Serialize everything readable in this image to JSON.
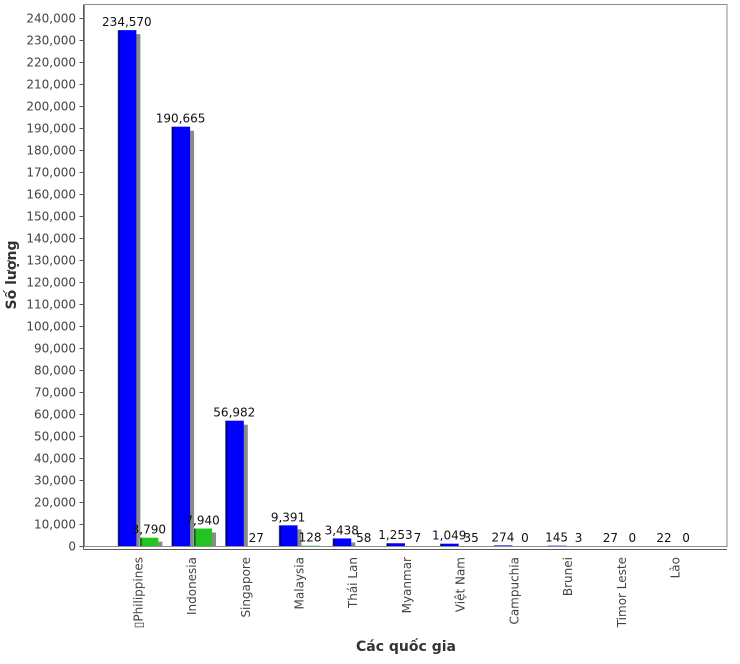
{
  "chart_data": {
    "type": "bar",
    "xlabel": "Các quốc gia",
    "ylabel": "Số lượng",
    "categories": [
      "▯Philippines",
      "Indonesia",
      "Singapore",
      "Malaysia",
      "Thái Lan",
      "Myanmar",
      "Việt Nam",
      "Campuchia",
      "Brunei",
      "Timor Leste",
      "Lào"
    ],
    "series": [
      {
        "color": "#0000ff",
        "values": [
          234570,
          190665,
          56982,
          9391,
          3438,
          1253,
          1049,
          274,
          145,
          27,
          22
        ]
      },
      {
        "color": "#22c422",
        "values": [
          3790,
          7940,
          27,
          128,
          58,
          7,
          35,
          0,
          3,
          0,
          0
        ]
      }
    ],
    "ylim": [
      0,
      246000
    ],
    "yticks": [
      0,
      10000,
      20000,
      30000,
      40000,
      50000,
      60000,
      70000,
      80000,
      90000,
      100000,
      110000,
      120000,
      130000,
      140000,
      150000,
      160000,
      170000,
      180000,
      190000,
      200000,
      210000,
      220000,
      230000,
      240000
    ],
    "grid": false,
    "legend": "none",
    "value_labels": true,
    "bar_shadow": true
  }
}
